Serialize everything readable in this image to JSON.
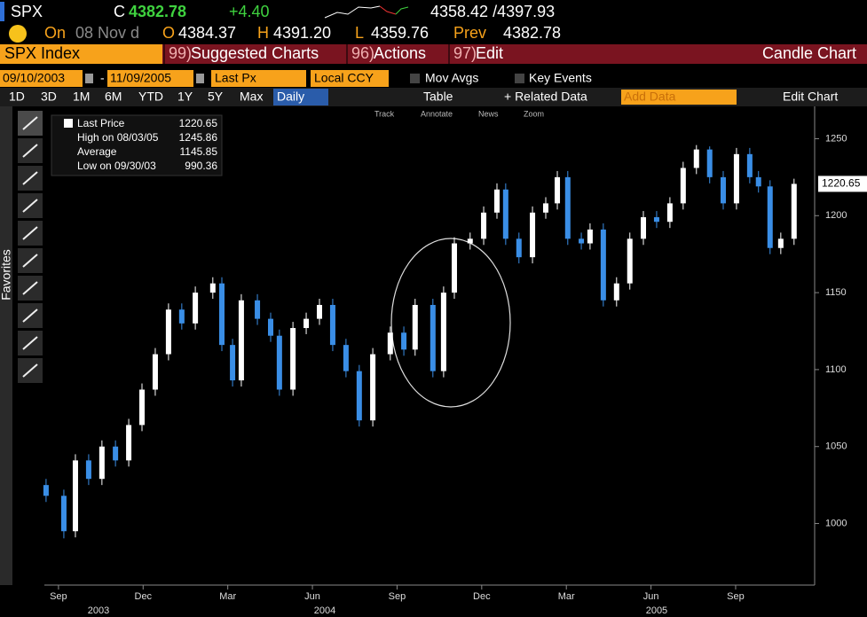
{
  "header": {
    "ticker": "SPX",
    "c_label": "C",
    "last": "4382.78",
    "change": "+4.40",
    "bid_ask": "4358.42 /4397.93",
    "on_label": "On",
    "date": "08 Nov d",
    "o_label": "O",
    "open": "4384.37",
    "h_label": "H",
    "high": "4391.20",
    "l_label": "L",
    "low": "4359.76",
    "prev_label": "Prev",
    "prev": "4382.78"
  },
  "menu": {
    "security": "SPX Index",
    "items": [
      {
        "num": "99)",
        "label": "Suggested Charts"
      },
      {
        "num": "96)",
        "label": "Actions"
      },
      {
        "num": "97)",
        "label": "Edit"
      }
    ],
    "chart_kind": "Candle Chart"
  },
  "settings": {
    "start": "09/10/2003",
    "dash": "-",
    "end": "11/09/2005",
    "field": "Last Px",
    "currency": "Local CCY",
    "mov_avgs": "Mov Avgs",
    "key_events": "Key Events"
  },
  "periods": {
    "items": [
      "1D",
      "3D",
      "1M",
      "6M",
      "YTD",
      "1Y",
      "5Y",
      "Max"
    ],
    "frequency": "Daily",
    "table": "Table",
    "related": "+ Related Data",
    "add_data": "Add Data",
    "edit_chart": "Edit Chart"
  },
  "tools": {
    "items": [
      "Track",
      "Annotate",
      "News",
      "Zoom"
    ],
    "favorites": "Favorites"
  },
  "chart_data": {
    "type": "candlestick",
    "up_color": "#ffffff",
    "down_color": "#3a8ee6",
    "legend": [
      {
        "name": "Last Price",
        "value": 1220.65
      },
      {
        "name": "High on 08/03/05",
        "value": 1245.86
      },
      {
        "name": "Average",
        "value": 1145.85
      },
      {
        "name": "Low on 09/30/03",
        "value": 990.36
      }
    ],
    "x": [
      -0.44,
      0.19,
      0.6,
      1.07,
      1.54,
      2.02,
      2.49,
      2.96,
      3.43,
      3.9,
      4.37,
      4.85,
      5.47,
      5.79,
      6.17,
      6.48,
      7.05,
      7.52,
      7.83,
      8.31,
      8.78,
      9.25,
      9.72,
      10.19,
      10.66,
      11.14,
      11.76,
      12.24,
      12.64,
      13.27,
      13.65,
      14.03,
      14.59,
      15.07,
      15.54,
      15.85,
      16.32,
      16.8,
      17.27,
      17.68,
      18.05,
      18.53,
      18.84,
      19.31,
      19.78,
      20.25,
      20.73,
      21.2,
      21.67,
      22.14,
      22.61,
      23.08,
      23.56,
      24.03,
      24.5,
      24.81,
      25.22,
      25.6,
      26.07
    ],
    "open": [
      1025,
      1018,
      995,
      1041,
      1029,
      1050,
      1041,
      1064,
      1087,
      1110,
      1139,
      1130,
      1150,
      1156,
      1116,
      1093,
      1145,
      1133,
      1122,
      1087,
      1127,
      1133,
      1142,
      1116,
      1099,
      1067,
      1110,
      1124,
      1113,
      1142,
      1099,
      1150,
      1182,
      1185,
      1202,
      1217,
      1185,
      1173,
      1202,
      1208,
      1225,
      1185,
      1182,
      1191,
      1145,
      1156,
      1185,
      1199,
      1196,
      1208,
      1231,
      1243,
      1225,
      1208,
      1240,
      1225,
      1219,
      1179,
      1185
    ],
    "high": [
      1029,
      1022,
      1045,
      1045,
      1054,
      1054,
      1068,
      1091,
      1114,
      1143,
      1143,
      1154,
      1160,
      1160,
      1120,
      1149,
      1149,
      1137,
      1126,
      1131,
      1137,
      1146,
      1146,
      1120,
      1103,
      1114,
      1128,
      1128,
      1146,
      1146,
      1154,
      1186,
      1189,
      1206,
      1221,
      1221,
      1189,
      1206,
      1212,
      1229,
      1229,
      1189,
      1195,
      1195,
      1160,
      1189,
      1203,
      1203,
      1212,
      1235,
      1245.86,
      1245,
      1229,
      1244,
      1244,
      1229,
      1223,
      1189,
      1224
    ],
    "low": [
      1014,
      990.36,
      991,
      1025,
      1025,
      1037,
      1037,
      1060,
      1083,
      1106,
      1126,
      1126,
      1146,
      1112,
      1089,
      1089,
      1129,
      1118,
      1083,
      1083,
      1123,
      1129,
      1112,
      1095,
      1063,
      1063,
      1106,
      1109,
      1109,
      1095,
      1095,
      1146,
      1178,
      1181,
      1198,
      1181,
      1169,
      1169,
      1198,
      1204,
      1181,
      1178,
      1178,
      1141,
      1141,
      1152,
      1181,
      1192,
      1192,
      1204,
      1227,
      1221,
      1204,
      1204,
      1221,
      1215,
      1175,
      1175,
      1181
    ],
    "close": [
      1018,
      995,
      1041,
      1029,
      1050,
      1041,
      1064,
      1087,
      1110,
      1139,
      1130,
      1150,
      1156,
      1116,
      1093,
      1145,
      1133,
      1122,
      1087,
      1127,
      1133,
      1142,
      1116,
      1099,
      1067,
      1110,
      1124,
      1113,
      1142,
      1099,
      1150,
      1182,
      1185,
      1202,
      1217,
      1185,
      1173,
      1202,
      1208,
      1225,
      1185,
      1182,
      1191,
      1145,
      1156,
      1185,
      1199,
      1196,
      1208,
      1231,
      1243,
      1225,
      1208,
      1240,
      1225,
      1219,
      1179,
      1185,
      1220.65
    ],
    "xlim": [
      -0.5,
      26.8
    ],
    "xticks": [
      {
        "value": 0,
        "label": "Sep"
      },
      {
        "value": 3,
        "label": "Dec"
      },
      {
        "value": 6,
        "label": "Mar"
      },
      {
        "value": 9,
        "label": "Jun"
      },
      {
        "value": 12,
        "label": "Sep"
      },
      {
        "value": 15,
        "label": "Dec"
      },
      {
        "value": 18,
        "label": "Mar"
      },
      {
        "value": 21,
        "label": "Jun"
      },
      {
        "value": 24,
        "label": "Sep"
      }
    ],
    "year_labels": [
      {
        "value": 1.42,
        "label": "2003"
      },
      {
        "value": 9.44,
        "label": "2004"
      },
      {
        "value": 21.2,
        "label": "2005"
      }
    ],
    "ylim": [
      960,
      1271
    ],
    "yticks": [
      1000,
      1050,
      1100,
      1150,
      1200,
      1250
    ]
  }
}
